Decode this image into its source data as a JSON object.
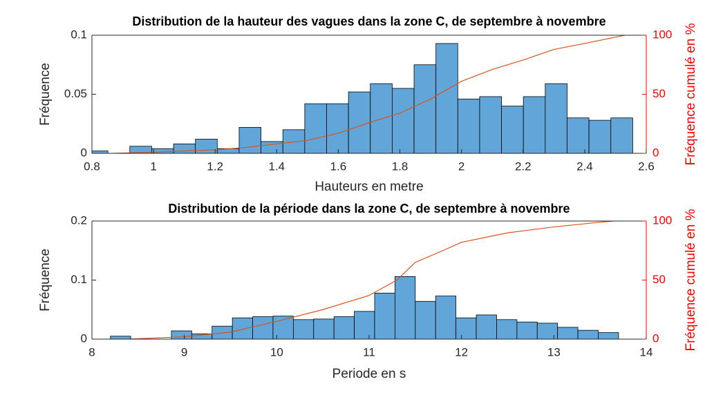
{
  "chart_data": [
    {
      "type": "histogram",
      "title": "Distribution de la hauteur des vagues dans la zone C, de septembre à novembre",
      "x_label": "Hauteurs en metre",
      "y_label": "Fréquence",
      "y2_label": "Fréquence cumulé en %",
      "bins": [
        0.781,
        0.852,
        0.923,
        0.994,
        1.065,
        1.136,
        1.207,
        1.278,
        1.349,
        1.42,
        1.491,
        1.562,
        1.633,
        1.704,
        1.775,
        1.846,
        1.917,
        1.988,
        2.059,
        2.13,
        2.201,
        2.272,
        2.343,
        2.414,
        2.485,
        2.556
      ],
      "values": [
        0.002,
        0,
        0.006,
        0.004,
        0.008,
        0.012,
        0.004,
        0.022,
        0.01,
        0.02,
        0.042,
        0.042,
        0.052,
        0.059,
        0.055,
        0.075,
        0.093,
        0.046,
        0.048,
        0.04,
        0.048,
        0.059,
        0.03,
        0.028,
        0.03
      ],
      "color": "#62a6d9",
      "cumulative_line": {
        "color": "#d95319",
        "axis": "y2",
        "x": [
          0.87,
          1.0,
          1.1,
          1.2,
          1.3,
          1.4,
          1.5,
          1.6,
          1.7,
          1.8,
          1.9,
          2.0,
          2.1,
          2.2,
          2.3,
          2.4,
          2.53
        ],
        "values": [
          0,
          1,
          2,
          3,
          5,
          8,
          11,
          17,
          26,
          34,
          46,
          61,
          71,
          79,
          88,
          93,
          100
        ]
      },
      "xlim": [
        0.8,
        2.6
      ],
      "xticks": [
        0.8,
        1,
        1.2,
        1.4,
        1.6,
        1.8,
        2,
        2.2,
        2.4,
        2.6
      ],
      "ylim": [
        0,
        0.1
      ],
      "yticks": [
        0,
        0.05,
        0.1
      ],
      "y2lim": [
        0,
        100
      ],
      "y2ticks": [
        0,
        50,
        100
      ],
      "y2_color": "#ff0000"
    },
    {
      "type": "histogram",
      "title": "Distribution de la période dans la zone C, de septembre à novembre",
      "x_label": "Periode en s",
      "y_label": "Fréquence",
      "y2_label": "Fréquence cumulé en %",
      "bins": [
        8.2,
        8.42,
        8.64,
        8.86,
        9.08,
        9.3,
        9.52,
        9.74,
        9.96,
        10.18,
        10.4,
        10.62,
        10.84,
        11.06,
        11.28,
        11.5,
        11.72,
        11.94,
        12.16,
        12.38,
        12.6,
        12.82,
        13.04,
        13.26,
        13.48,
        13.7
      ],
      "values": [
        0.005,
        0,
        0,
        0.014,
        0.009,
        0.022,
        0.036,
        0.038,
        0.039,
        0.033,
        0.034,
        0.038,
        0.047,
        0.078,
        0.106,
        0.064,
        0.073,
        0.036,
        0.041,
        0.033,
        0.029,
        0.027,
        0.02,
        0.015,
        0.011
      ],
      "color": "#62a6d9",
      "cumulative_line": {
        "color": "#d95319",
        "axis": "y2",
        "x": [
          8.4,
          9.0,
          9.5,
          10.0,
          10.5,
          11.0,
          11.3,
          11.5,
          11.8,
          12.0,
          12.5,
          13.0,
          13.5,
          13.65
        ],
        "values": [
          0,
          2,
          6,
          15,
          25,
          37,
          50,
          65,
          75,
          82,
          90,
          95,
          99,
          100
        ]
      },
      "xlim": [
        8,
        14
      ],
      "xticks": [
        8,
        9,
        10,
        11,
        12,
        13,
        14
      ],
      "ylim": [
        0,
        0.2
      ],
      "yticks": [
        0,
        0.1,
        0.2
      ],
      "y2lim": [
        0,
        100
      ],
      "y2ticks": [
        0,
        50,
        100
      ],
      "y2_color": "#ff0000"
    }
  ]
}
